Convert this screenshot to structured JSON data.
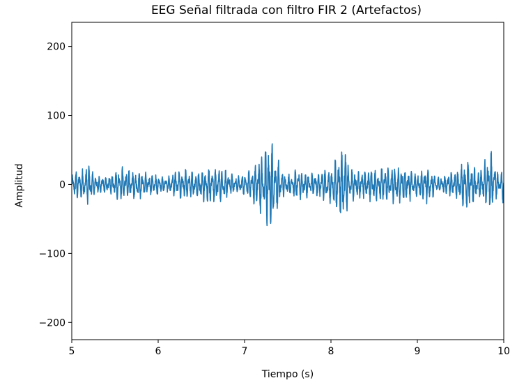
{
  "chart_data": {
    "type": "line",
    "title": "EEG Señal filtrada con filtro FIR 2 (Artefactos)",
    "xlabel": "Tiempo (s)",
    "ylabel": "Amplitud",
    "xlim": [
      5,
      10
    ],
    "ylim": [
      -225,
      235
    ],
    "xticks": [
      5,
      6,
      7,
      8,
      9,
      10
    ],
    "xtick_labels": [
      "5",
      "6",
      "7",
      "8",
      "9",
      "10"
    ],
    "yticks": [
      -200,
      -100,
      0,
      100,
      200
    ],
    "ytick_labels": [
      "−200",
      "−100",
      "0",
      "100",
      "200"
    ],
    "grid": false,
    "legend": "none",
    "color": "#1f77b4",
    "series": [
      {
        "x": [
          5.0,
          5.1,
          5.2,
          5.25,
          5.3,
          5.4,
          5.5,
          5.6,
          5.7,
          5.8,
          5.9,
          6.0,
          6.1,
          6.2,
          6.3,
          6.45,
          6.6,
          6.75,
          6.9,
          7.0,
          7.1,
          7.2,
          7.3,
          7.35,
          7.4,
          7.45,
          7.5,
          7.6,
          7.7,
          7.8,
          7.9,
          8.0,
          8.1,
          8.17,
          8.2,
          8.3,
          8.4,
          8.5,
          8.6,
          8.75,
          8.9,
          9.0,
          9.1,
          9.25,
          9.45,
          9.6,
          9.7,
          9.8,
          9.85,
          9.95,
          10.0
        ],
        "envelope_max": [
          17,
          23,
          30,
          18,
          14,
          12,
          18,
          27,
          20,
          22,
          15,
          16,
          10,
          20,
          22,
          18,
          26,
          24,
          12,
          16,
          24,
          45,
          71,
          45,
          34,
          18,
          15,
          22,
          18,
          17,
          22,
          20,
          52,
          60,
          27,
          20,
          24,
          25,
          26,
          26,
          24,
          18,
          26,
          10,
          23,
          38,
          18,
          40,
          50,
          10,
          30
        ],
        "envelope_min": [
          -20,
          -22,
          -32,
          -18,
          -16,
          -14,
          -20,
          -27,
          -22,
          -22,
          -15,
          -18,
          -12,
          -22,
          -24,
          -20,
          -30,
          -26,
          -12,
          -16,
          -28,
          -48,
          -70,
          -48,
          -34,
          -18,
          -15,
          -24,
          -20,
          -20,
          -24,
          -28,
          -50,
          -55,
          -30,
          -20,
          -24,
          -26,
          -28,
          -28,
          -26,
          -18,
          -32,
          -10,
          -22,
          -42,
          -18,
          -35,
          -42,
          -10,
          -32
        ]
      }
    ]
  }
}
